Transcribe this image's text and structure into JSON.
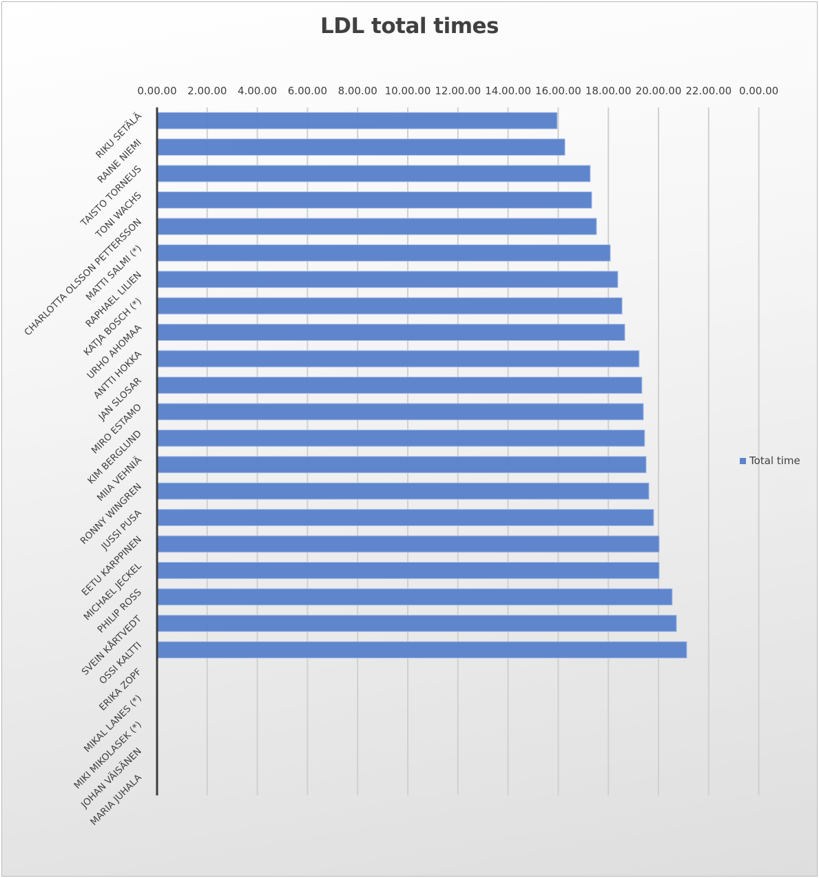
{
  "chart_data": {
    "type": "bar",
    "orientation": "horizontal",
    "title": "LDL total times",
    "xlabel": "",
    "ylabel": "",
    "x_tick_labels": [
      "0.00.00",
      "2.00.00",
      "4.00.00",
      "6.00.00",
      "8.00.00",
      "10.00.00",
      "12.00.00",
      "14.00.00",
      "16.00.00",
      "18.00.00",
      "20.00.00",
      "22.00.00",
      "0.00.00"
    ],
    "xlim_hours": [
      0,
      24
    ],
    "x_axis_position": "top",
    "grid": true,
    "legend_position": "right",
    "bar_color": "#5b83cc",
    "categories": [
      "RIKU SETÄLÄ",
      "RAINE NIEMI",
      "TAISTO TORNEUS",
      "TONI WACHS",
      "CHARLOTTA OLSSON PETTERSSON",
      "MATTI SALMI (*)",
      "RAPHAEL LILIEN",
      "KATJA BOSCH (*)",
      "URHO AHOMAA",
      "ANTTI HOKKA",
      "JAN SLOSAR",
      "MIRO ESTAMO",
      "KIM BERGLUND",
      "MIIA VEHNIÄ",
      "RONNY WINGREN",
      "JUSSI PUSA",
      "EETU KARPPINEN",
      "MICHAEL JECKEL",
      "PHILIP ROSS",
      "SVEIN KÅRTVEDT",
      "OSSI KALTTI",
      "ERIKA ZOPF",
      "MIKAL LANES (*)",
      "MIKI MIKOLASEK (*)",
      "JOHAN VÄISÄNEN",
      "MARIA JUHALA"
    ],
    "series": [
      {
        "name": "Total time",
        "unit": "hours",
        "values": [
          15.93,
          16.24,
          17.25,
          17.31,
          17.5,
          18.05,
          18.35,
          18.52,
          18.63,
          19.2,
          19.31,
          19.37,
          19.42,
          19.48,
          19.59,
          19.78,
          20.0,
          20.0,
          20.52,
          20.69,
          21.1,
          null,
          null,
          null,
          null,
          null
        ]
      }
    ]
  }
}
